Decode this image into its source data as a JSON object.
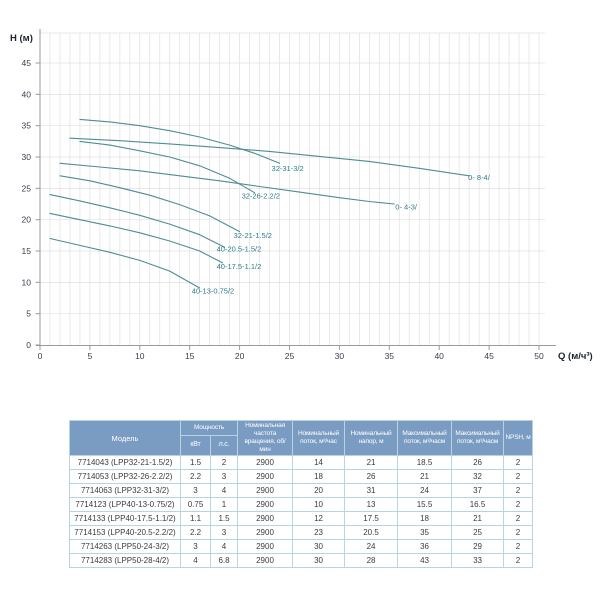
{
  "colors": {
    "curve": "#4E8C96",
    "curve_label": "#2E7D8B",
    "grid": "#E0E0E0",
    "axis": "#9A9A9A",
    "tick_text": "#39404D",
    "axis_title_text": "#1D2433",
    "table_header_bg": "#7B9CC2",
    "table_header_text": "#FFFFFF",
    "table_border": "#B8D4E2",
    "table_text": "#3C3C3C"
  },
  "chart_data": {
    "type": "line",
    "title": "",
    "xlabel": "Q (м/ч³)",
    "ylabel": "Н (м)",
    "xlim": [
      0,
      50
    ],
    "ylim": [
      0,
      45
    ],
    "x_ticks": [
      0,
      5,
      10,
      15,
      20,
      25,
      30,
      35,
      40,
      45,
      50
    ],
    "y_ticks": [
      0,
      5,
      10,
      15,
      20,
      25,
      30,
      35,
      40,
      45
    ],
    "grid": "vertical minor every 1 unit, horizontal every 5 units",
    "legend_position": "labels at curve ends",
    "series": [
      {
        "name": "32-31-3/2",
        "points": [
          [
            4,
            36
          ],
          [
            7,
            35.6
          ],
          [
            10,
            35
          ],
          [
            13,
            34.2
          ],
          [
            16,
            33.2
          ],
          [
            19,
            31.9
          ],
          [
            21.5,
            30.6
          ],
          [
            24,
            29
          ]
        ],
        "label_pos": [
          23.2,
          27.8
        ]
      },
      {
        "name": "0-  8-4/",
        "points": [
          [
            3,
            33
          ],
          [
            8,
            32.6
          ],
          [
            13,
            32.1
          ],
          [
            18,
            31.5
          ],
          [
            23,
            30.9
          ],
          [
            28,
            30.1
          ],
          [
            33,
            29.3
          ],
          [
            38,
            28.2
          ],
          [
            43,
            27
          ]
        ],
        "label_pos": [
          42.9,
          26.3
        ]
      },
      {
        "name": "32-26-2.2/2",
        "points": [
          [
            4,
            32.5
          ],
          [
            7,
            31.9
          ],
          [
            10,
            31
          ],
          [
            13,
            30
          ],
          [
            16,
            28.6
          ],
          [
            19,
            26.6
          ],
          [
            21.5,
            24.3
          ]
        ],
        "label_pos": [
          20.2,
          23.4
        ]
      },
      {
        "name": "0-  4-3/",
        "points": [
          [
            2,
            29
          ],
          [
            6,
            28.4
          ],
          [
            10,
            27.8
          ],
          [
            14,
            27
          ],
          [
            18,
            26.2
          ],
          [
            22,
            25.3
          ],
          [
            26,
            24.4
          ],
          [
            30,
            23.5
          ],
          [
            33,
            22.9
          ],
          [
            35.5,
            22.5
          ]
        ],
        "label_pos": [
          35.6,
          21.6
        ]
      },
      {
        "name": "32-21-1.5/2",
        "points": [
          [
            2,
            27
          ],
          [
            5,
            26.2
          ],
          [
            8,
            25.1
          ],
          [
            11,
            23.9
          ],
          [
            14,
            22.4
          ],
          [
            17,
            20.6
          ],
          [
            20,
            18.1
          ]
        ],
        "label_pos": [
          19.4,
          17.1
        ]
      },
      {
        "name": "40-20.5-1.5/2",
        "points": [
          [
            1,
            24
          ],
          [
            4,
            23
          ],
          [
            7,
            21.9
          ],
          [
            10,
            20.7
          ],
          [
            13,
            19.3
          ],
          [
            16,
            17.6
          ],
          [
            18.5,
            15.6
          ]
        ],
        "label_pos": [
          17.7,
          14.9
        ]
      },
      {
        "name": "40-17.5-1.1/2",
        "points": [
          [
            1,
            21
          ],
          [
            4,
            20
          ],
          [
            7,
            19
          ],
          [
            10,
            17.9
          ],
          [
            13,
            16.6
          ],
          [
            16,
            15
          ],
          [
            18.3,
            13.1
          ]
        ],
        "label_pos": [
          17.7,
          12.1
        ]
      },
      {
        "name": "40-13-0.75/2",
        "points": [
          [
            1,
            17
          ],
          [
            4,
            15.9
          ],
          [
            7,
            14.8
          ],
          [
            10,
            13.5
          ],
          [
            13,
            11.8
          ],
          [
            16,
            9.1
          ]
        ],
        "label_pos": [
          15.2,
          8.2
        ]
      }
    ]
  },
  "table": {
    "header": {
      "model": "Модель",
      "power_group": "Мощность",
      "power_kw": "кВт",
      "power_hp": "л.с.",
      "speed": "Номинальная частота вращения, об/мин",
      "nominal_flow": "Номинальный поток, м³/час",
      "nominal_head": "Номинальный напор, м",
      "max_flow": "Максимальный поток, м³/часм",
      "max_flow2": "Максимальный поток, м³/часм",
      "npsh": "NPSH, м"
    },
    "rows": [
      [
        "7714043 (LPP32-21-1.5/2)",
        "1.5",
        "2",
        "2900",
        "14",
        "21",
        "18.5",
        "26",
        "2"
      ],
      [
        "7714053 (LPP32-26-2.2/2)",
        "2.2",
        "3",
        "2900",
        "18",
        "26",
        "21",
        "32",
        "2"
      ],
      [
        "7714063 (LPP32-31-3/2)",
        "3",
        "4",
        "2900",
        "20",
        "31",
        "24",
        "37",
        "2"
      ],
      [
        "7714123 (LPP40-13-0.75/2)",
        "0.75",
        "1",
        "2900",
        "10",
        "13",
        "15.5",
        "16.5",
        "2"
      ],
      [
        "7714133 (LPP40-17.5-1.1/2)",
        "1.1",
        "1.5",
        "2900",
        "12",
        "17.5",
        "18",
        "21",
        "2"
      ],
      [
        "7714153 (LPP40-20.5-2.2/2)",
        "2.2",
        "3",
        "2900",
        "23",
        "20.5",
        "35",
        "25",
        "2"
      ],
      [
        "7714263 (LPP50-24-3/2)",
        "3",
        "4",
        "2900",
        "30",
        "24",
        "36",
        "29",
        "2"
      ],
      [
        "7714283 (LPP50-28-4/2)",
        "4",
        "6.8",
        "2900",
        "30",
        "28",
        "43",
        "33",
        "2"
      ]
    ]
  }
}
